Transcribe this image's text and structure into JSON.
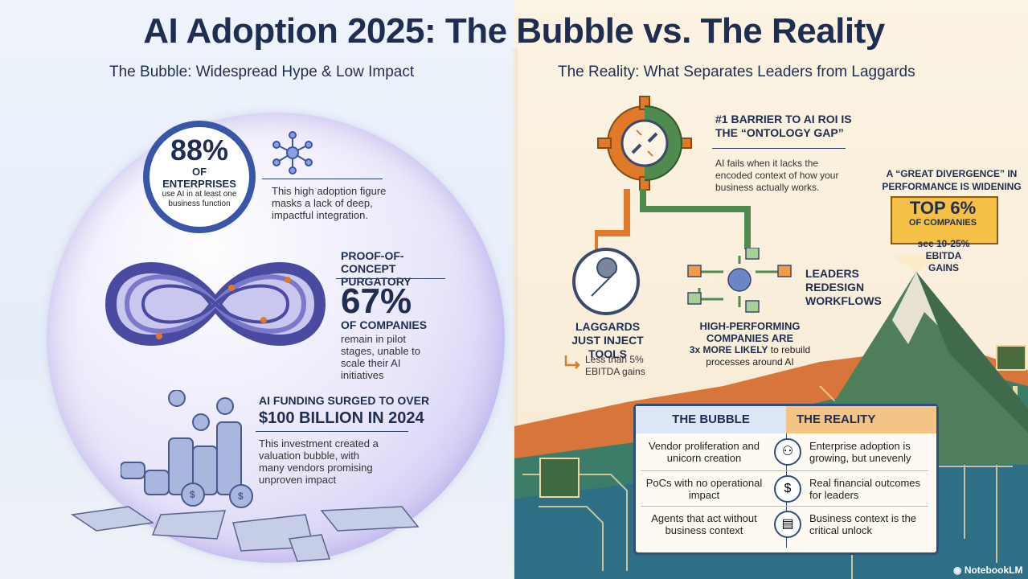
{
  "header": {
    "title": "AI Adoption 2025: The Bubble vs. The Reality"
  },
  "left": {
    "heading": "The Bubble: Widespread Hype & Low Impact",
    "stat1": {
      "value": "88%",
      "label": "OF ENTERPRISES",
      "sub": "use AI in at least one business function",
      "note": "This high adoption figure masks a lack of deep, impactful integration."
    },
    "stat2": {
      "title": "PROOF-OF-CONCEPT PURGATORY",
      "value": "67%",
      "label": "OF COMPANIES",
      "note": "remain in pilot stages, unable to scale their AI initiatives"
    },
    "stat3": {
      "title": "AI FUNDING SURGED TO OVER",
      "value": "$100 BILLION IN 2024",
      "note": "This investment created a valuation bubble, with many vendors promising unproven impact"
    }
  },
  "right": {
    "heading": "The Reality: What Separates Leaders from Laggards",
    "barrier": {
      "title": "#1 BARRIER TO AI ROI IS THE “ONTOLOGY GAP”",
      "note": "AI fails when it lacks the encoded context of how your business actually works."
    },
    "divergence": {
      "title": "A “GREAT DIVERGENCE” IN PERFORMANCE IS WIDENING",
      "top": "TOP 6%",
      "top_label": "OF COMPANIES",
      "gain": "see 10-25% EBITDA GAINS"
    },
    "leaders": "LEADERS REDESIGN WORKFLOWS",
    "laggards": {
      "title": "LAGGARDS JUST INJECT TOOLS",
      "note": "Less than 5% EBITDA gains"
    },
    "high": {
      "title": "HIGH-PERFORMING COMPANIES ARE",
      "emph": "3x MORE LIKELY",
      "note_tail": "to rebuild processes around AI"
    },
    "table": {
      "col1": "THE BUBBLE",
      "col2": "THE REALITY",
      "rows": [
        {
          "bubble": "Vendor proliferation and unicorn creation",
          "icon": "people-icon",
          "reality": "Enterprise adoption is growing, but unevenly"
        },
        {
          "bubble": "PoCs with no operational impact",
          "icon": "dollar-icon",
          "reality": "Real financial outcomes for leaders"
        },
        {
          "bubble": "Agents that act without business context",
          "icon": "chart-icon",
          "reality": "Business context is the critical unlock"
        }
      ]
    }
  },
  "footer": {
    "brand": "NotebookLM"
  },
  "colors": {
    "navy": "#1f2d52",
    "accent_blue": "#3a56a8",
    "orange": "#e07a2a",
    "green": "#4f8a4f",
    "gold": "#f4c046"
  }
}
